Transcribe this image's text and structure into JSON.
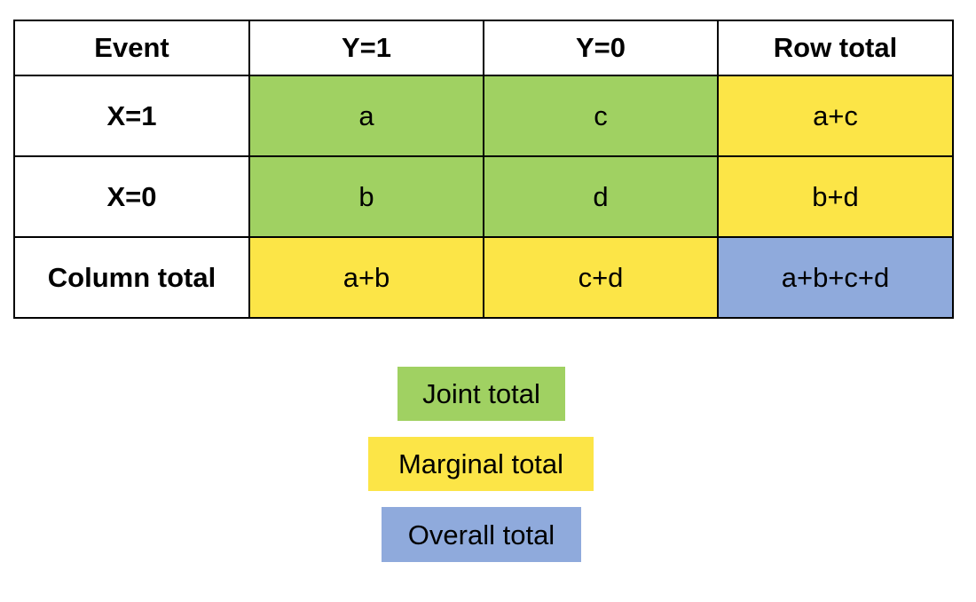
{
  "colors": {
    "joint": "#a0d162",
    "marginal": "#fce547",
    "overall": "#8faadc",
    "header": "#ffffff"
  },
  "table": {
    "headers": [
      "Event",
      "Y=1",
      "Y=0",
      "Row total"
    ],
    "rows": [
      {
        "label": "X=1",
        "cells": [
          "a",
          "c",
          "a+c"
        ],
        "kinds": [
          "joint",
          "joint",
          "marginal"
        ]
      },
      {
        "label": "X=0",
        "cells": [
          "b",
          "d",
          "b+d"
        ],
        "kinds": [
          "joint",
          "joint",
          "marginal"
        ]
      },
      {
        "label": "Column total",
        "cells": [
          "a+b",
          "c+d",
          "a+b+c+d"
        ],
        "kinds": [
          "marginal",
          "marginal",
          "overall"
        ]
      }
    ]
  },
  "legend": {
    "joint_label": "Joint total",
    "marginal_label": "Marginal total",
    "overall_label": "Overall total"
  }
}
